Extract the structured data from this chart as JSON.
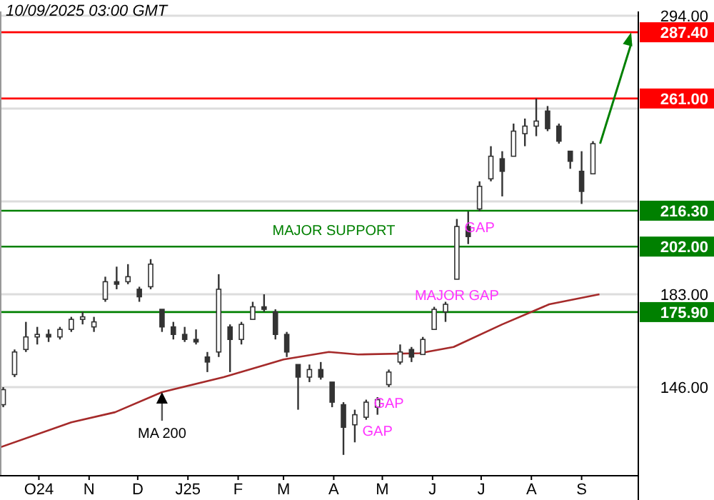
{
  "chart_data": {
    "type": "candlestick",
    "color": "#333333",
    "x": [
      "2024-09-09",
      "2024-09-16",
      "2024-09-23",
      "2024-09-30",
      "2024-10-07",
      "2024-10-14",
      "2024-10-21",
      "2024-10-28",
      "2024-11-04",
      "2024-11-11",
      "2024-11-18",
      "2024-11-25",
      "2024-12-02",
      "2024-12-09",
      "2024-12-16",
      "2024-12-23",
      "2024-12-30",
      "2025-01-06",
      "2025-01-13",
      "2025-01-20",
      "2025-01-27",
      "2025-02-03",
      "2025-02-10",
      "2025-02-17",
      "2025-02-24",
      "2025-03-03",
      "2025-03-10",
      "2025-03-17",
      "2025-03-24",
      "2025-03-31",
      "2025-04-07",
      "2025-04-14",
      "2025-04-21",
      "2025-04-28",
      "2025-05-05",
      "2025-05-12",
      "2025-05-19",
      "2025-05-26",
      "2025-06-02",
      "2025-06-09",
      "2025-06-16",
      "2025-06-23",
      "2025-06-30",
      "2025-07-07",
      "2025-07-14",
      "2025-07-21",
      "2025-07-28",
      "2025-08-04",
      "2025-08-11",
      "2025-08-18",
      "2025-08-25",
      "2025-09-01",
      "2025-09-08"
    ],
    "ohlc": [
      [
        139,
        146,
        138,
        145
      ],
      [
        151,
        161,
        150,
        160
      ],
      [
        161,
        172,
        160,
        166
      ],
      [
        166,
        170,
        163,
        167
      ],
      [
        167,
        169,
        164,
        166
      ],
      [
        166,
        170,
        165,
        169
      ],
      [
        169,
        174,
        168,
        173
      ],
      [
        173,
        176,
        171,
        174
      ],
      [
        170,
        174,
        168,
        172
      ],
      [
        181,
        190,
        180,
        188
      ],
      [
        188,
        194,
        185,
        187
      ],
      [
        188,
        195,
        187,
        190
      ],
      [
        185,
        186,
        180,
        182
      ],
      [
        186,
        197,
        185,
        195
      ],
      [
        177,
        177,
        168,
        170
      ],
      [
        170,
        172,
        165,
        167
      ],
      [
        167,
        170,
        164,
        165
      ],
      [
        165,
        169,
        163,
        164
      ],
      [
        158,
        160,
        152,
        156
      ],
      [
        160,
        191,
        158,
        185
      ],
      [
        170,
        171,
        152,
        165
      ],
      [
        165,
        172,
        163,
        171
      ],
      [
        173,
        180,
        173,
        178
      ],
      [
        178,
        183,
        176,
        177
      ],
      [
        176,
        177,
        165,
        167
      ],
      [
        167,
        168,
        158,
        160
      ],
      [
        155,
        155,
        137,
        150
      ],
      [
        150,
        155,
        148,
        153
      ],
      [
        153,
        156,
        149,
        150
      ],
      [
        148,
        148,
        138,
        140
      ],
      [
        139,
        140,
        119,
        130
      ],
      [
        131,
        137,
        124,
        135
      ],
      [
        134,
        141,
        133,
        140
      ],
      [
        138,
        142,
        135,
        141
      ],
      [
        147,
        153,
        146,
        152
      ],
      [
        156,
        163,
        155,
        160
      ],
      [
        161,
        162,
        156,
        158
      ],
      [
        159,
        166,
        159,
        165
      ],
      [
        169,
        178,
        169,
        177
      ],
      [
        176,
        180,
        172,
        179
      ],
      [
        189,
        213,
        189,
        210
      ],
      [
        210,
        216,
        203,
        206
      ],
      [
        217,
        228,
        216,
        226
      ],
      [
        229,
        242,
        228,
        238
      ],
      [
        237,
        240,
        222,
        232
      ],
      [
        238,
        251,
        238,
        248
      ],
      [
        247,
        253,
        242,
        250
      ],
      [
        250,
        261,
        246,
        252
      ],
      [
        256,
        258,
        248,
        249
      ],
      [
        250,
        251,
        243,
        244
      ],
      [
        240,
        240,
        233,
        236
      ],
      [
        232,
        240,
        219,
        224
      ],
      [
        231,
        244,
        231,
        243
      ]
    ],
    "series": [
      {
        "type": "line",
        "color": "#a52a2a",
        "x": [
          "2024-09-07",
          "2024-10-21",
          "2024-11-17",
          "2024-12-16",
          "2025-01-23",
          "2025-03-01",
          "2025-03-29",
          "2025-04-16",
          "2025-05-24",
          "2025-06-14",
          "2025-07-14",
          "2025-08-12",
          "2025-09-12"
        ],
        "values": [
          122,
          132,
          136,
          144,
          150,
          157,
          160,
          159,
          159.5,
          162,
          171,
          179,
          183
        ]
      }
    ],
    "xlim": [
      "2024-09-07",
      "2025-10-06"
    ],
    "xticks": [
      {
        "value": "2024-10-01",
        "label": "O24"
      },
      {
        "value": "2024-11-01",
        "label": "N"
      },
      {
        "value": "2024-12-01",
        "label": "D"
      },
      {
        "value": "2025-01-01",
        "label": "J25"
      },
      {
        "value": "2025-02-01",
        "label": "F"
      },
      {
        "value": "2025-03-01",
        "label": "M"
      },
      {
        "value": "2025-04-01",
        "label": "A"
      },
      {
        "value": "2025-05-01",
        "label": "M"
      },
      {
        "value": "2025-06-01",
        "label": "J"
      },
      {
        "value": "2025-07-01",
        "label": "J"
      },
      {
        "value": "2025-08-01",
        "label": "A"
      },
      {
        "value": "2025-09-01",
        "label": "S"
      }
    ],
    "ylim": [
      110.7,
      295.7
    ],
    "yticks": [
      {
        "value": 146,
        "label": "146.00"
      },
      {
        "value": 183,
        "label": "183.00"
      },
      {
        "value": 220,
        "label": null
      },
      {
        "value": 257,
        "label": null
      },
      {
        "value": 294,
        "label": "294.00"
      }
    ],
    "grid": "y",
    "ref_lines": [
      {
        "axis": "y",
        "value": 287.4,
        "label": "287.40",
        "color": "#ff0000"
      },
      {
        "axis": "y",
        "value": 261,
        "label": "261.00",
        "color": "#ff0000"
      },
      {
        "axis": "y",
        "value": 216.3,
        "label": "216.30",
        "color": "#008000"
      },
      {
        "axis": "y",
        "value": 202,
        "label": "202.00",
        "color": "#008000"
      },
      {
        "axis": "y",
        "value": 175.9,
        "label": "175.90",
        "color": "#008000"
      }
    ],
    "annotations": [
      "10/09/2025 03:00 GMT",
      {
        "text": "MAJOR SUPPORT",
        "x": "2025-04-01",
        "y": 202
      },
      {
        "text": "GAP",
        "x": "2025-06-30",
        "y": 216
      },
      {
        "text": "MAJOR GAP",
        "x": "2025-06-16",
        "y": 189
      },
      {
        "text": "GAP",
        "x": "2025-05-05",
        "y": 146
      },
      {
        "text": "GAP",
        "x": "2025-04-28",
        "y": 135
      },
      {
        "text": "MA 200",
        "x": "2024-12-16",
        "y": 144
      }
    ]
  }
}
